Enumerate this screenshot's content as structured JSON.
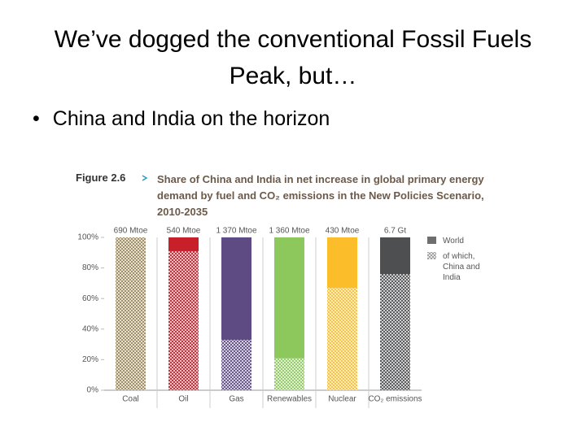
{
  "slide": {
    "title": "We’ve dogged the conventional Fossil Fuels Peak, but…",
    "bullets": [
      "China and India on the horizon"
    ]
  },
  "chart_data": {
    "type": "bar",
    "figure_label": "Figure 2.6",
    "title": "Share of China and India in net increase in global primary energy demand by fuel and CO₂ emissions in the New Policies Scenario, 2010-2035",
    "categories": [
      "Coal",
      "Oil",
      "Gas",
      "Renewables",
      "Nuclear",
      "CO₂ emissions"
    ],
    "top_labels": [
      "690 Mtoe",
      "540 Mtoe",
      "1 370 Mtoe",
      "1 360 Mtoe",
      "430 Mtoe",
      "6.7 Gt"
    ],
    "colors": [
      "#9c8a5c",
      "#c8202a",
      "#5e4b83",
      "#8cc85c",
      "#fbbd2a",
      "#4e4f50"
    ],
    "series": [
      {
        "name": "World",
        "color": "#6d6e70",
        "values": [
          100,
          100,
          100,
          100,
          100,
          100
        ]
      },
      {
        "name": "of which, China and India",
        "color": "#9a9a9a",
        "values": [
          100,
          91,
          33,
          21,
          67,
          76
        ]
      }
    ],
    "ylim": [
      0,
      100
    ],
    "yticks": [
      {
        "value": 0,
        "label": "0%"
      },
      {
        "value": 20,
        "label": "20%"
      },
      {
        "value": 40,
        "label": "40%"
      },
      {
        "value": 60,
        "label": "60%"
      },
      {
        "value": 80,
        "label": "80%"
      },
      {
        "value": 100,
        "label": "100%"
      }
    ]
  }
}
